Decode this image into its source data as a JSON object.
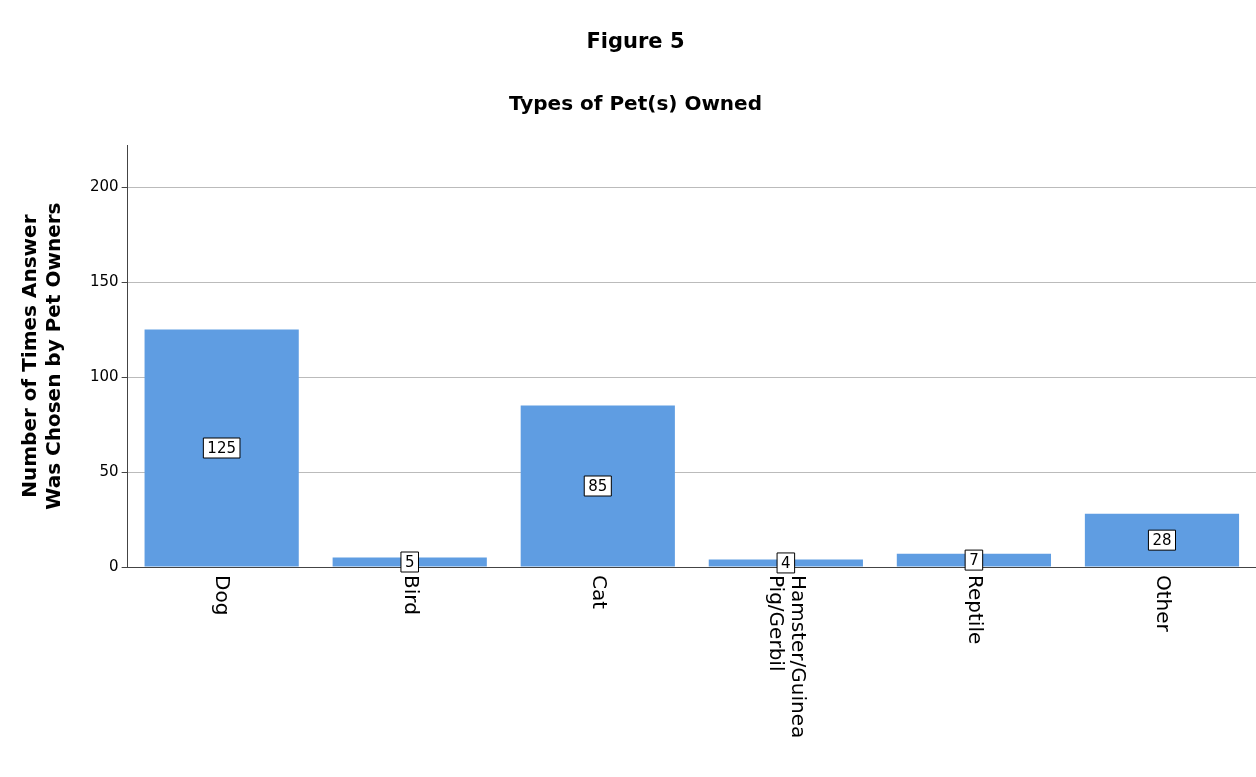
{
  "chart_data": {
    "type": "bar",
    "title": "Figure 5",
    "subtitle": "Types of Pet(s) Owned",
    "ylabel": "Number of Times Answer Was Chosen by Pet Owners",
    "categories": [
      "Dog",
      "Bird",
      "Cat",
      "Hamster/Guinea Pig/Gerbil",
      "Reptile",
      "Other"
    ],
    "values": [
      125,
      5,
      85,
      4,
      7,
      28
    ],
    "color": "#5f9de2",
    "ylim": [
      0,
      222
    ],
    "yticks": [
      0,
      50,
      100,
      150,
      200
    ],
    "grid": "y",
    "data_labels": true,
    "legend": false
  }
}
